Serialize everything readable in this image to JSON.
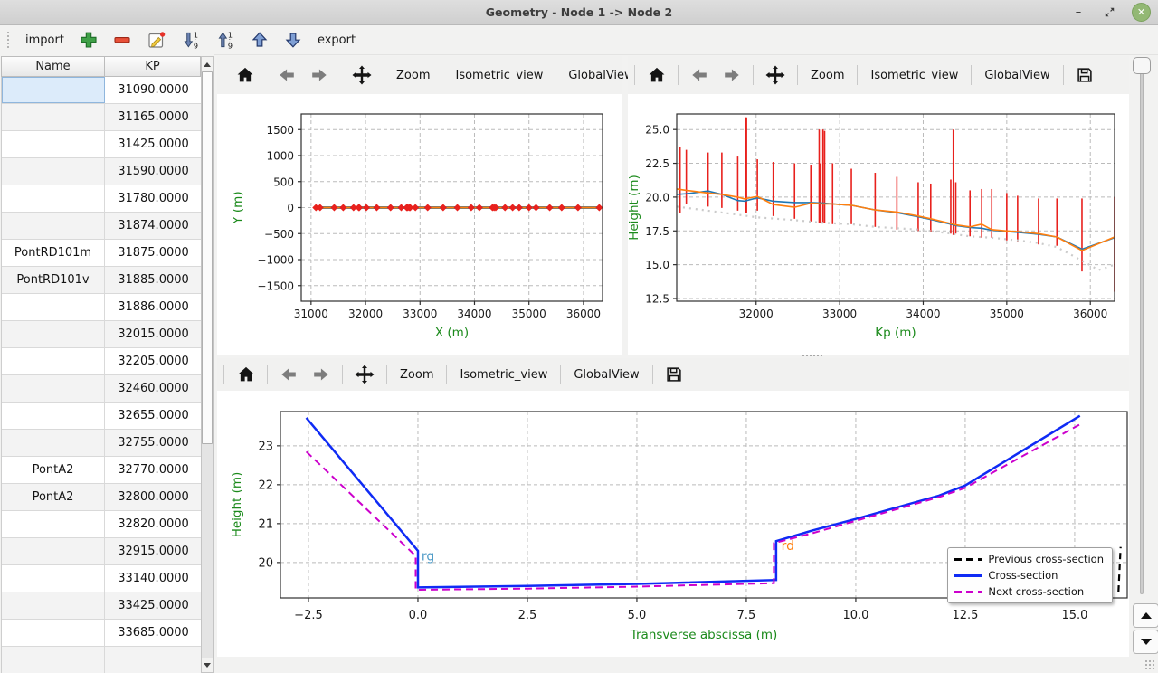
{
  "window": {
    "title": "Geometry - Node 1 -> Node 2",
    "controls": [
      {
        "name": "minimize",
        "glyph": "–"
      },
      {
        "name": "restore",
        "glyph": ""
      },
      {
        "name": "close",
        "glyph": "✕"
      }
    ],
    "close_button_color": "#93b874"
  },
  "main_toolbar": {
    "items": [
      {
        "kind": "button",
        "name": "import",
        "label": "import"
      },
      {
        "kind": "icon",
        "name": "add"
      },
      {
        "kind": "icon",
        "name": "remove"
      },
      {
        "kind": "icon",
        "name": "edit"
      },
      {
        "kind": "icon",
        "name": "sort-ascending"
      },
      {
        "kind": "icon",
        "name": "sort-descending"
      },
      {
        "kind": "icon",
        "name": "move-up"
      },
      {
        "kind": "icon",
        "name": "move-down"
      },
      {
        "kind": "button",
        "name": "export",
        "label": "export"
      }
    ]
  },
  "table": {
    "columns": [
      "Name",
      "KP"
    ],
    "rows": [
      {
        "name": "",
        "kp": "31090.0000",
        "selected": true
      },
      {
        "name": "",
        "kp": "31165.0000"
      },
      {
        "name": "",
        "kp": "31425.0000"
      },
      {
        "name": "",
        "kp": "31590.0000"
      },
      {
        "name": "",
        "kp": "31780.0000"
      },
      {
        "name": "",
        "kp": "31874.0000"
      },
      {
        "name": "PontRD101m",
        "kp": "31875.0000"
      },
      {
        "name": "PontRD101v",
        "kp": "31885.0000"
      },
      {
        "name": "",
        "kp": "31886.0000"
      },
      {
        "name": "",
        "kp": "32015.0000"
      },
      {
        "name": "",
        "kp": "32205.0000"
      },
      {
        "name": "",
        "kp": "32460.0000"
      },
      {
        "name": "",
        "kp": "32655.0000"
      },
      {
        "name": "",
        "kp": "32755.0000"
      },
      {
        "name": "PontA2",
        "kp": "32770.0000"
      },
      {
        "name": "PontA2",
        "kp": "32800.0000"
      },
      {
        "name": "",
        "kp": "32820.0000"
      },
      {
        "name": "",
        "kp": "32915.0000"
      },
      {
        "name": "",
        "kp": "33140.0000"
      },
      {
        "name": "",
        "kp": "33425.0000"
      },
      {
        "name": "",
        "kp": "33685.0000"
      },
      {
        "name": "",
        "kp": ""
      }
    ],
    "selection_color": "#dcebfa"
  },
  "plot_toolbars": {
    "plan": [
      {
        "kind": "icon",
        "name": "home"
      },
      {
        "kind": "sep"
      },
      {
        "kind": "icon",
        "name": "back"
      },
      {
        "kind": "icon",
        "name": "forward"
      },
      {
        "kind": "sep"
      },
      {
        "kind": "icon",
        "name": "pan"
      },
      {
        "kind": "sep"
      },
      {
        "kind": "button",
        "name": "zoom",
        "label": "Zoom"
      },
      {
        "kind": "sep"
      },
      {
        "kind": "button",
        "name": "isometric-view",
        "label": "Isometric_view"
      },
      {
        "kind": "sep"
      },
      {
        "kind": "button",
        "name": "global-view",
        "label": "GlobalView"
      },
      {
        "kind": "sep"
      },
      {
        "kind": "button",
        "name": "more",
        "label": "»"
      }
    ],
    "profile": [
      {
        "kind": "icon",
        "name": "home"
      },
      {
        "kind": "sep"
      },
      {
        "kind": "icon",
        "name": "back"
      },
      {
        "kind": "icon",
        "name": "forward"
      },
      {
        "kind": "sep"
      },
      {
        "kind": "icon",
        "name": "pan"
      },
      {
        "kind": "sep"
      },
      {
        "kind": "button",
        "name": "zoom",
        "label": "Zoom"
      },
      {
        "kind": "sep"
      },
      {
        "kind": "button",
        "name": "isometric-view",
        "label": "Isometric_view"
      },
      {
        "kind": "sep"
      },
      {
        "kind": "button",
        "name": "global-view",
        "label": "GlobalView"
      },
      {
        "kind": "sep"
      },
      {
        "kind": "icon",
        "name": "save"
      }
    ],
    "cross": [
      {
        "kind": "icon",
        "name": "home"
      },
      {
        "kind": "sep"
      },
      {
        "kind": "icon",
        "name": "back"
      },
      {
        "kind": "icon",
        "name": "forward"
      },
      {
        "kind": "sep"
      },
      {
        "kind": "icon",
        "name": "pan"
      },
      {
        "kind": "sep"
      },
      {
        "kind": "button",
        "name": "zoom",
        "label": "Zoom"
      },
      {
        "kind": "sep"
      },
      {
        "kind": "button",
        "name": "isometric-view",
        "label": "Isometric_view"
      },
      {
        "kind": "sep"
      },
      {
        "kind": "button",
        "name": "global-view",
        "label": "GlobalView"
      },
      {
        "kind": "sep"
      },
      {
        "kind": "icon",
        "name": "save"
      }
    ]
  },
  "chart_data": [
    {
      "id": "plan",
      "type": "line",
      "title": "",
      "xlabel": "X (m)",
      "ylabel": "Y (m)",
      "xlim": [
        30820,
        36350
      ],
      "ylim": [
        -1800,
        1800
      ],
      "xticks": [
        31000,
        32000,
        33000,
        34000,
        35000,
        36000
      ],
      "xtick_labels": [
        "31000",
        "32000",
        "33000",
        "34000",
        "35000",
        "36000"
      ],
      "yticks": [
        -1500,
        -1000,
        -500,
        0,
        500,
        1000,
        1500
      ],
      "ytick_labels": [
        "−1500",
        "−1000",
        "−500",
        "0",
        "500",
        "1000",
        "1500"
      ],
      "grid": true,
      "series": [
        {
          "name": "reach-axis-blue",
          "color": "#1f77b4",
          "width": 3,
          "x": [
            31090,
            36290
          ],
          "y": [
            0,
            0
          ]
        },
        {
          "name": "reach-axis-orange",
          "color": "#ff7f0e",
          "width": 2,
          "x": [
            31090,
            36290
          ],
          "y": [
            0,
            0
          ]
        },
        {
          "name": "cross-section-markers",
          "color": "#e8211d",
          "marker": "diamond",
          "markersize": 4,
          "x": [
            31090,
            31165,
            31425,
            31590,
            31780,
            31874,
            31885,
            32015,
            32205,
            32460,
            32655,
            32755,
            32770,
            32800,
            32820,
            32915,
            33140,
            33425,
            33685,
            33940,
            34090,
            34330,
            34360,
            34390,
            34560,
            34700,
            34820,
            35000,
            35130,
            35380,
            35600,
            35900,
            36290
          ],
          "y": [
            0,
            0,
            0,
            0,
            0,
            0,
            0,
            0,
            0,
            0,
            0,
            0,
            0,
            0,
            0,
            0,
            0,
            0,
            0,
            0,
            0,
            0,
            0,
            0,
            0,
            0,
            0,
            0,
            0,
            0,
            0,
            0,
            0
          ]
        }
      ]
    },
    {
      "id": "profile",
      "type": "line",
      "title": "",
      "xlabel": "Kp (m)",
      "ylabel": "Height (m)",
      "xlim": [
        31050,
        36290
      ],
      "ylim": [
        12.3,
        26.15
      ],
      "xticks": [
        32000,
        33000,
        34000,
        35000,
        36000
      ],
      "xtick_labels": [
        "32000",
        "33000",
        "34000",
        "35000",
        "36000"
      ],
      "yticks": [
        12.5,
        15.0,
        17.5,
        20.0,
        22.5,
        25.0
      ],
      "ytick_labels": [
        "12.5",
        "15.0",
        "17.5",
        "20.0",
        "22.5",
        "25.0"
      ],
      "grid": true,
      "vlines": {
        "name": "cross-section-extents",
        "color": "#e8211d",
        "width": 1.6,
        "data": [
          [
            31090,
            18.8,
            23.7
          ],
          [
            31165,
            19.5,
            23.5
          ],
          [
            31425,
            19.3,
            23.3
          ],
          [
            31590,
            19.2,
            23.3
          ],
          [
            31780,
            19.0,
            23.0
          ],
          [
            31874,
            18.8,
            25.9
          ],
          [
            31885,
            18.8,
            25.9
          ],
          [
            32015,
            19.0,
            22.8
          ],
          [
            32205,
            18.6,
            22.6
          ],
          [
            32460,
            18.4,
            22.5
          ],
          [
            32655,
            18.2,
            22.4
          ],
          [
            32755,
            18.1,
            25.0
          ],
          [
            32770,
            18.1,
            22.5
          ],
          [
            32800,
            18.1,
            25.0
          ],
          [
            32820,
            18.1,
            24.9
          ],
          [
            32915,
            18.0,
            22.5
          ],
          [
            33140,
            18.0,
            22.1
          ],
          [
            33425,
            17.8,
            21.8
          ],
          [
            33685,
            17.6,
            21.5
          ],
          [
            33940,
            17.5,
            21.1
          ],
          [
            34090,
            17.4,
            21.0
          ],
          [
            34330,
            17.3,
            21.3
          ],
          [
            34360,
            17.2,
            25.0
          ],
          [
            34390,
            17.3,
            21.1
          ],
          [
            34560,
            17.1,
            20.5
          ],
          [
            34700,
            17.0,
            20.6
          ],
          [
            34820,
            17.0,
            20.6
          ],
          [
            35000,
            16.8,
            20.3
          ],
          [
            35130,
            16.7,
            20.1
          ],
          [
            35380,
            16.5,
            19.9
          ],
          [
            35600,
            16.4,
            19.9
          ],
          [
            35900,
            14.5,
            19.9
          ],
          [
            36290,
            13.0,
            20.0
          ]
        ]
      },
      "series": [
        {
          "name": "bed-level",
          "color": "#cbcbcb",
          "width": 2.2,
          "dash": "2 5",
          "x": [
            31050,
            31425,
            31780,
            32015,
            32460,
            32800,
            33140,
            33425,
            33685,
            33940,
            34090,
            34330,
            34560,
            34820,
            35130,
            35380,
            35600,
            35900,
            36100,
            36290
          ],
          "y": [
            19.3,
            19.0,
            18.7,
            18.5,
            18.3,
            18.1,
            18.0,
            17.8,
            17.7,
            17.6,
            17.5,
            17.3,
            17.1,
            17.0,
            16.8,
            16.6,
            16.3,
            15.3,
            14.6,
            15.0
          ]
        },
        {
          "name": "left-bank-level",
          "color": "#1f77b4",
          "width": 1.6,
          "x": [
            31050,
            31165,
            31425,
            31590,
            31780,
            31874,
            31886,
            32015,
            32205,
            32460,
            32655,
            32800,
            32915,
            33140,
            33425,
            33685,
            33940,
            34090,
            34330,
            34390,
            34560,
            34700,
            34820,
            35000,
            35130,
            35380,
            35600,
            35900,
            36290
          ],
          "y": [
            20.2,
            20.25,
            20.45,
            20.2,
            19.75,
            19.7,
            19.75,
            19.95,
            19.7,
            19.6,
            19.6,
            19.55,
            19.5,
            19.4,
            19.05,
            18.85,
            18.55,
            18.35,
            18.0,
            17.9,
            17.75,
            17.7,
            17.55,
            17.45,
            17.4,
            17.25,
            17.05,
            16.15,
            17.0
          ]
        },
        {
          "name": "right-bank-level",
          "color": "#ff7f0e",
          "width": 1.6,
          "x": [
            31050,
            31165,
            31425,
            31590,
            31780,
            31874,
            31886,
            32015,
            32205,
            32460,
            32655,
            32800,
            32915,
            33140,
            33425,
            33685,
            33940,
            34090,
            34330,
            34390,
            34560,
            34700,
            34820,
            35000,
            35130,
            35380,
            35600,
            35900,
            36290
          ],
          "y": [
            20.6,
            20.5,
            20.3,
            20.2,
            20.0,
            19.85,
            19.9,
            20.05,
            19.45,
            19.25,
            19.55,
            19.5,
            19.5,
            19.4,
            19.05,
            18.9,
            18.6,
            18.4,
            18.05,
            17.95,
            17.8,
            18.0,
            17.6,
            17.5,
            17.45,
            17.3,
            17.05,
            16.05,
            17.05
          ]
        }
      ]
    },
    {
      "id": "cross_section",
      "type": "line",
      "title": "",
      "xlabel": "Transverse abscissa (m)",
      "ylabel": "Height (m)",
      "xlim": [
        -3.14,
        16.2
      ],
      "ylim": [
        19.09,
        23.88
      ],
      "xticks": [
        -2.5,
        0.0,
        2.5,
        5.0,
        7.5,
        10.0,
        12.5,
        15.0
      ],
      "xtick_labels": [
        "−2.5",
        "0.0",
        "2.5",
        "5.0",
        "7.5",
        "10.0",
        "12.5",
        "15.0"
      ],
      "yticks": [
        20,
        21,
        22,
        23
      ],
      "ytick_labels": [
        "20",
        "21",
        "22",
        "23"
      ],
      "grid": true,
      "series": [
        {
          "name": "previous-cross-section",
          "label": "Previous cross-section",
          "color": "#000000",
          "width": 2.2,
          "dash": "7 5",
          "x": [
            16.0,
            16.05
          ],
          "y": [
            19.25,
            20.4
          ]
        },
        {
          "name": "cross-section",
          "label": "Cross-section",
          "color": "#0f2bf5",
          "width": 2.5,
          "x": [
            -2.55,
            0,
            0,
            2.5,
            5,
            8.18,
            8.18,
            9,
            10,
            11.9,
            12.5,
            15.12
          ],
          "y": [
            23.72,
            20.3,
            19.36,
            19.4,
            19.45,
            19.55,
            20.55,
            20.82,
            21.12,
            21.72,
            21.98,
            23.77
          ]
        },
        {
          "name": "next-cross-section",
          "label": "Next cross-section",
          "color": "#cc00cc",
          "width": 2,
          "dash": "8 5",
          "x": [
            -2.55,
            -0.05,
            -0.05,
            2.5,
            5,
            8.13,
            8.13,
            9,
            10,
            11.9,
            12.5,
            15.12
          ],
          "y": [
            22.85,
            20.17,
            19.3,
            19.33,
            19.38,
            19.47,
            20.5,
            20.75,
            21.07,
            21.68,
            21.92,
            23.55
          ]
        }
      ],
      "annotations": [
        {
          "text": "rg",
          "x": 0.08,
          "y": 20.05,
          "color": "#4f9bc7"
        },
        {
          "text": "rd",
          "x": 8.3,
          "y": 20.32,
          "color": "#ff7f0e"
        }
      ],
      "legend": {
        "position": "lower right",
        "entry_indices": [
          0,
          1,
          2
        ]
      }
    }
  ]
}
